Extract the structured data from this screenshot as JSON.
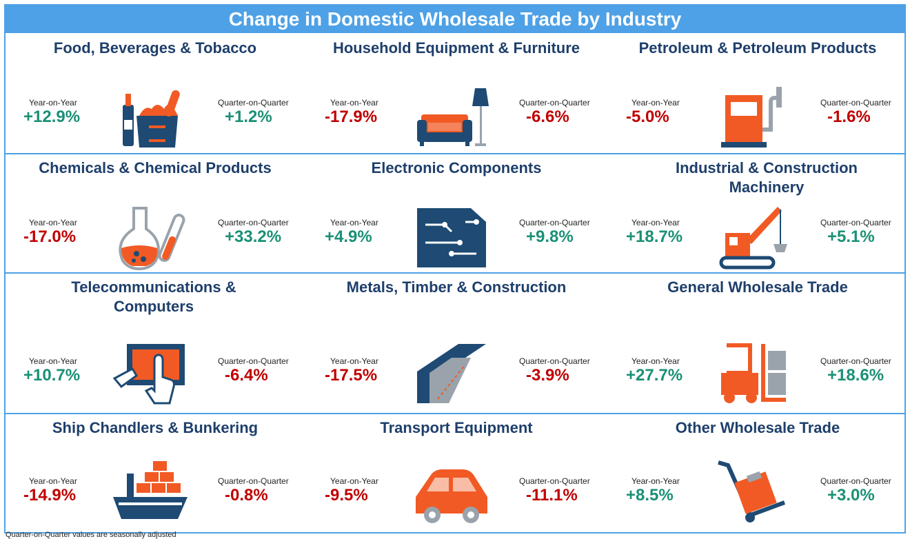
{
  "title": "Change in Domestic Wholesale Trade by Industry",
  "colors": {
    "header": "#4ea1e6",
    "positive": "#1a9076",
    "negative": "#c00000",
    "icon_orange": "#f15a24",
    "icon_navy": "#1e4a73"
  },
  "yoy_label": "Year-on-Year",
  "qoq_label": "Quarter-on-Quarter",
  "industries": [
    {
      "name": "Food, Beverages & Tobacco",
      "icon": "food-basket-icon",
      "yoy": "+12.9%",
      "qoq": "+1.2%"
    },
    {
      "name": "Household Equipment & Furniture",
      "icon": "sofa-lamp-icon",
      "yoy": "-17.9%",
      "qoq": "-6.6%"
    },
    {
      "name": "Petroleum & Petroleum Products",
      "icon": "fuel-pump-icon",
      "yoy": "-5.0%",
      "qoq": "-1.6%"
    },
    {
      "name": "Chemicals & Chemical Products",
      "icon": "flask-icon",
      "yoy": "-17.0%",
      "qoq": "+33.2%"
    },
    {
      "name": "Electronic Components",
      "icon": "circuit-board-icon",
      "yoy": "+4.9%",
      "qoq": "+9.8%"
    },
    {
      "name": "Industrial & Construction Machinery",
      "icon": "crane-icon",
      "yoy": "+18.7%",
      "qoq": "+5.1%"
    },
    {
      "name": "Telecommunications & Computers",
      "icon": "touchscreen-icon",
      "yoy": "+10.7%",
      "qoq": "-6.4%"
    },
    {
      "name": "Metals, Timber & Construction",
      "icon": "steel-beam-icon",
      "yoy": "-17.5%",
      "qoq": "-3.9%"
    },
    {
      "name": "General Wholesale Trade",
      "icon": "forklift-icon",
      "yoy": "+27.7%",
      "qoq": "+18.6%"
    },
    {
      "name": "Ship Chandlers & Bunkering",
      "icon": "cargo-ship-icon",
      "yoy": "-14.9%",
      "qoq": "-0.8%"
    },
    {
      "name": "Transport Equipment",
      "icon": "car-icon",
      "yoy": "-9.5%",
      "qoq": "-11.1%"
    },
    {
      "name": "Other Wholesale Trade",
      "icon": "hand-truck-icon",
      "yoy": "+8.5%",
      "qoq": "+3.0%"
    }
  ],
  "footnote": "Quarter-on-Quarter values are seasonally adjusted"
}
